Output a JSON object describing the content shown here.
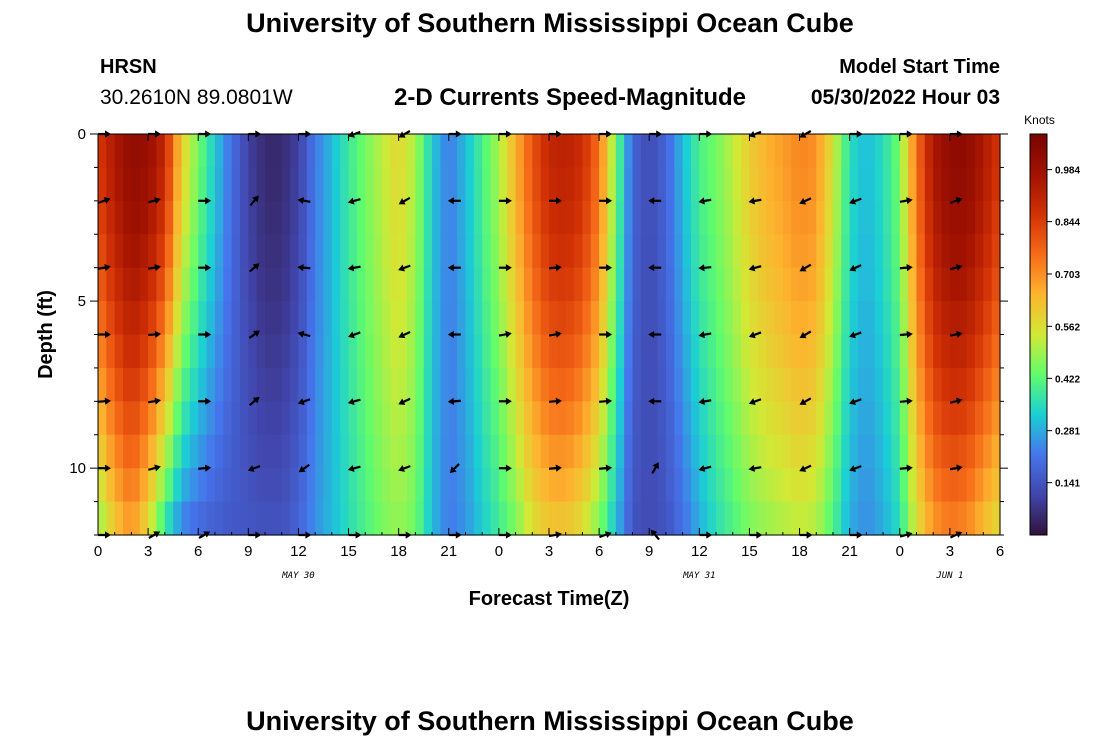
{
  "header": {
    "title": "University of Southern Mississippi Ocean Cube",
    "station": "HRSN",
    "coordinates": "30.2610N  89.0801W",
    "subtitle": "2-D Currents Speed-Magnitude",
    "model_label": "Model Start Time",
    "model_time": "05/30/2022 Hour 03"
  },
  "footer": {
    "title": "University of Southern Mississippi Ocean Cube"
  },
  "chart_data": {
    "type": "heatmap",
    "title": "2-D Currents Speed-Magnitude",
    "xlabel": "Forecast Time(Z)",
    "ylabel": "Depth (ft)",
    "x_unit": "forecast hour from 2022-05-30 00Z",
    "xlim": [
      0,
      54
    ],
    "ylim": [
      0,
      12
    ],
    "x_ticks": [
      0,
      3,
      6,
      9,
      12,
      15,
      18,
      21,
      24,
      27,
      30,
      33,
      36,
      39,
      42,
      45,
      48,
      51,
      54
    ],
    "x_tick_labels": [
      "0",
      "3",
      "6",
      "9",
      "12",
      "15",
      "18",
      "21",
      "0",
      "3",
      "6",
      "9",
      "12",
      "15",
      "18",
      "21",
      "0",
      "3",
      "6"
    ],
    "y_ticks": [
      0,
      5,
      10
    ],
    "y_tick_labels": [
      "0",
      "5",
      "10"
    ],
    "date_labels": [
      {
        "label": "MAY 30",
        "hour": 12
      },
      {
        "label": "MAY 31",
        "hour": 36
      },
      {
        "label": "JUN 1",
        "hour": 51
      }
    ],
    "colorbar": {
      "unit": "Knots",
      "min": 0.0,
      "max": 1.08,
      "tick_values": [
        0.984,
        0.844,
        0.703,
        0.562,
        0.422,
        0.281,
        0.141
      ],
      "tick_labels": [
        "0.984",
        "0.844",
        "0.703",
        "0.562",
        "0.422",
        "0.281",
        "0.141"
      ]
    },
    "speed_profile": {
      "hours": [
        0,
        1,
        2,
        3,
        4,
        5,
        6,
        7,
        8,
        9,
        10,
        11,
        12,
        13,
        14,
        15,
        16,
        17,
        18,
        19,
        20,
        21,
        22,
        23,
        24,
        25,
        26,
        27,
        28,
        29,
        30,
        31,
        32,
        33,
        34,
        35,
        36,
        37,
        38,
        39,
        40,
        41,
        42,
        43,
        44,
        45,
        46,
        47,
        48,
        49,
        50,
        51,
        52,
        53,
        54
      ],
      "surface": [
        0.85,
        0.95,
        1.02,
        1.0,
        0.9,
        0.6,
        0.45,
        0.32,
        0.2,
        0.1,
        0.05,
        0.05,
        0.1,
        0.22,
        0.3,
        0.38,
        0.45,
        0.52,
        0.58,
        0.5,
        0.32,
        0.22,
        0.3,
        0.4,
        0.5,
        0.65,
        0.8,
        0.9,
        0.92,
        0.88,
        0.75,
        0.45,
        0.18,
        0.12,
        0.18,
        0.3,
        0.4,
        0.45,
        0.52,
        0.6,
        0.65,
        0.68,
        0.72,
        0.7,
        0.55,
        0.35,
        0.3,
        0.35,
        0.45,
        0.75,
        0.95,
        1.02,
        1.02,
        0.95,
        0.85
      ],
      "bottom": [
        0.45,
        0.6,
        0.68,
        0.55,
        0.35,
        0.22,
        0.18,
        0.16,
        0.15,
        0.15,
        0.14,
        0.14,
        0.18,
        0.25,
        0.3,
        0.35,
        0.4,
        0.45,
        0.48,
        0.44,
        0.3,
        0.22,
        0.25,
        0.32,
        0.38,
        0.45,
        0.55,
        0.6,
        0.6,
        0.55,
        0.45,
        0.3,
        0.14,
        0.12,
        0.14,
        0.2,
        0.28,
        0.35,
        0.4,
        0.45,
        0.48,
        0.5,
        0.52,
        0.5,
        0.4,
        0.28,
        0.24,
        0.28,
        0.35,
        0.55,
        0.68,
        0.72,
        0.7,
        0.62,
        0.55
      ]
    },
    "vector_depths": [
      0,
      2,
      4,
      6,
      8,
      10,
      12
    ],
    "vectors": [
      {
        "hour": 0,
        "angle": [
          0,
          20,
          10,
          0,
          5,
          0,
          0
        ]
      },
      {
        "hour": 3,
        "angle": [
          0,
          15,
          10,
          5,
          10,
          15,
          30
        ]
      },
      {
        "hour": 6,
        "angle": [
          0,
          0,
          0,
          0,
          0,
          5,
          30
        ]
      },
      {
        "hour": 9,
        "angle": [
          0,
          50,
          40,
          35,
          40,
          200,
          0
        ]
      },
      {
        "hour": 12,
        "angle": [
          0,
          170,
          175,
          165,
          200,
          215,
          0
        ]
      },
      {
        "hour": 15,
        "angle": [
          200,
          195,
          190,
          200,
          195,
          195,
          0
        ]
      },
      {
        "hour": 18,
        "angle": [
          210,
          210,
          200,
          205,
          205,
          200,
          0
        ]
      },
      {
        "hour": 21,
        "angle": [
          0,
          180,
          180,
          180,
          185,
          225,
          0
        ]
      },
      {
        "hour": 24,
        "angle": [
          0,
          0,
          0,
          10,
          0,
          0,
          0
        ]
      },
      {
        "hour": 27,
        "angle": [
          0,
          0,
          5,
          10,
          5,
          5,
          10
        ]
      },
      {
        "hour": 30,
        "angle": [
          0,
          0,
          0,
          0,
          5,
          5,
          20
        ]
      },
      {
        "hour": 33,
        "angle": [
          0,
          180,
          180,
          180,
          180,
          60,
          130
        ]
      },
      {
        "hour": 36,
        "angle": [
          0,
          190,
          185,
          190,
          190,
          195,
          0
        ]
      },
      {
        "hour": 39,
        "angle": [
          200,
          190,
          195,
          200,
          200,
          190,
          0
        ]
      },
      {
        "hour": 42,
        "angle": [
          210,
          205,
          210,
          210,
          210,
          205,
          0
        ]
      },
      {
        "hour": 45,
        "angle": [
          0,
          200,
          205,
          200,
          200,
          200,
          0
        ]
      },
      {
        "hour": 48,
        "angle": [
          0,
          10,
          5,
          5,
          5,
          5,
          15
        ]
      },
      {
        "hour": 51,
        "angle": [
          0,
          20,
          15,
          10,
          15,
          10,
          25
        ]
      }
    ]
  }
}
